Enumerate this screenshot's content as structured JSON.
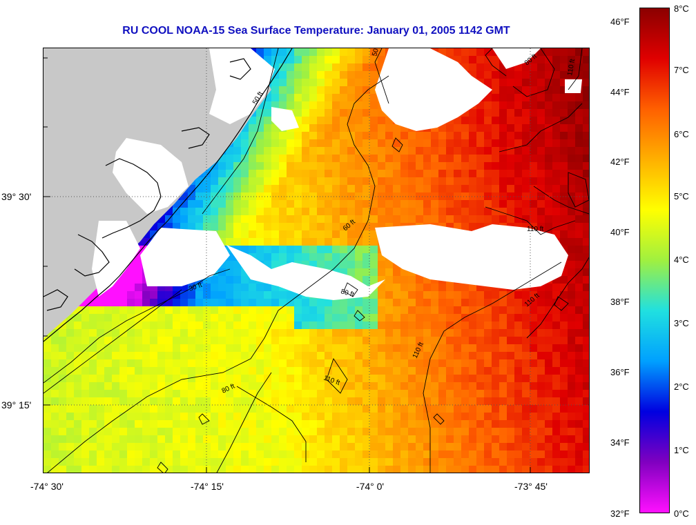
{
  "title": "RU COOL  NOAA-15  Sea Surface Temperature:  January 01, 2005 1142 GMT",
  "map": {
    "lat_labels": [
      "39° 30'",
      "39° 15'"
    ],
    "lon_labels": [
      "-74° 30'",
      "-74° 15'",
      "-74° 0'",
      "-73° 45'"
    ],
    "contour_labels": [
      "30 ft",
      "50 ft",
      "60 ft",
      "80 ft",
      "110 ft"
    ],
    "colors": {
      "land": "#c8c8c8",
      "cloud": "#ffffff",
      "coast": "#000000",
      "grid": "#555555"
    }
  },
  "colorbar": {
    "fahrenheit": [
      "46°F",
      "44°F",
      "42°F",
      "40°F",
      "38°F",
      "36°F",
      "34°F",
      "32°F"
    ],
    "celsius": [
      "8°C",
      "7°C",
      "6°C",
      "5°C",
      "4°C",
      "3°C",
      "2°C",
      "1°C",
      "0°C"
    ],
    "colors": [
      "#8b0000",
      "#e00000",
      "#ff6000",
      "#ffb000",
      "#ffff00",
      "#a0f040",
      "#20e0e0",
      "#00a0ff",
      "#0000e0",
      "#8000c0",
      "#ff10ff"
    ]
  }
}
